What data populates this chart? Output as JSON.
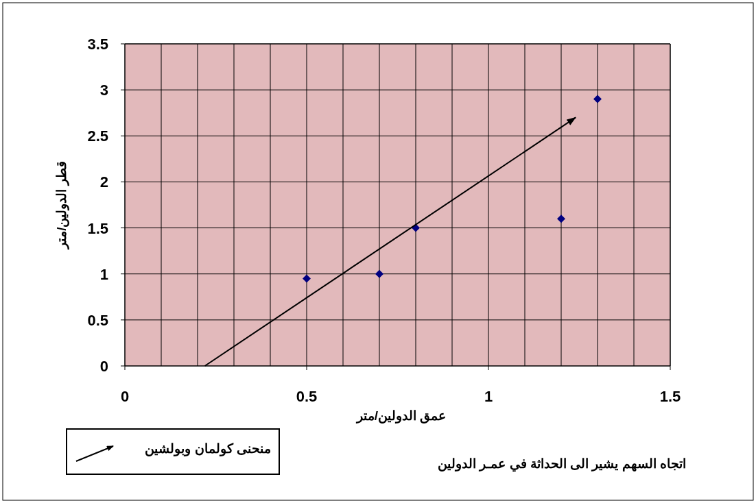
{
  "chart_data": {
    "type": "scatter",
    "xlabel": "عمق  الدولين/متر",
    "ylabel": "قطر الدولين/متر",
    "x": [
      0.5,
      0.7,
      0.8,
      1.2,
      1.3
    ],
    "series": [
      {
        "type": "scatter",
        "color": "#000080",
        "marker": "diamond",
        "values": [
          0.95,
          1.0,
          1.5,
          1.6,
          2.9
        ]
      },
      {
        "type": "line",
        "name": "منحنى كولمان وبولشين",
        "color": "#000000",
        "line_style": "solid",
        "x": [
          0.22,
          1.24
        ],
        "values": [
          0,
          2.7
        ]
      }
    ],
    "xlim": [
      0,
      1.5
    ],
    "ylim": [
      0,
      3.5
    ],
    "xticks": [
      0,
      {
        "value": 0.1,
        "label": null
      },
      {
        "value": 0.2,
        "label": null
      },
      {
        "value": 0.3,
        "label": null
      },
      {
        "value": 0.4,
        "label": null
      },
      0.5,
      {
        "value": 0.6,
        "label": null
      },
      {
        "value": 0.7,
        "label": null
      },
      {
        "value": 0.8,
        "label": null
      },
      {
        "value": 0.9,
        "label": null
      },
      1,
      {
        "value": 1.1,
        "label": null
      },
      {
        "value": 1.2,
        "label": null
      },
      {
        "value": 1.3,
        "label": null
      },
      {
        "value": 1.4,
        "label": null
      },
      1.5
    ],
    "yticks": [
      0,
      0.5,
      1,
      1.5,
      2,
      2.5,
      3,
      3.5
    ],
    "grid": true,
    "legend": "bottom left",
    "annotations": [
      "اتجاه السهم يشير الى الحداثة في عمـر الدولين"
    ]
  }
}
